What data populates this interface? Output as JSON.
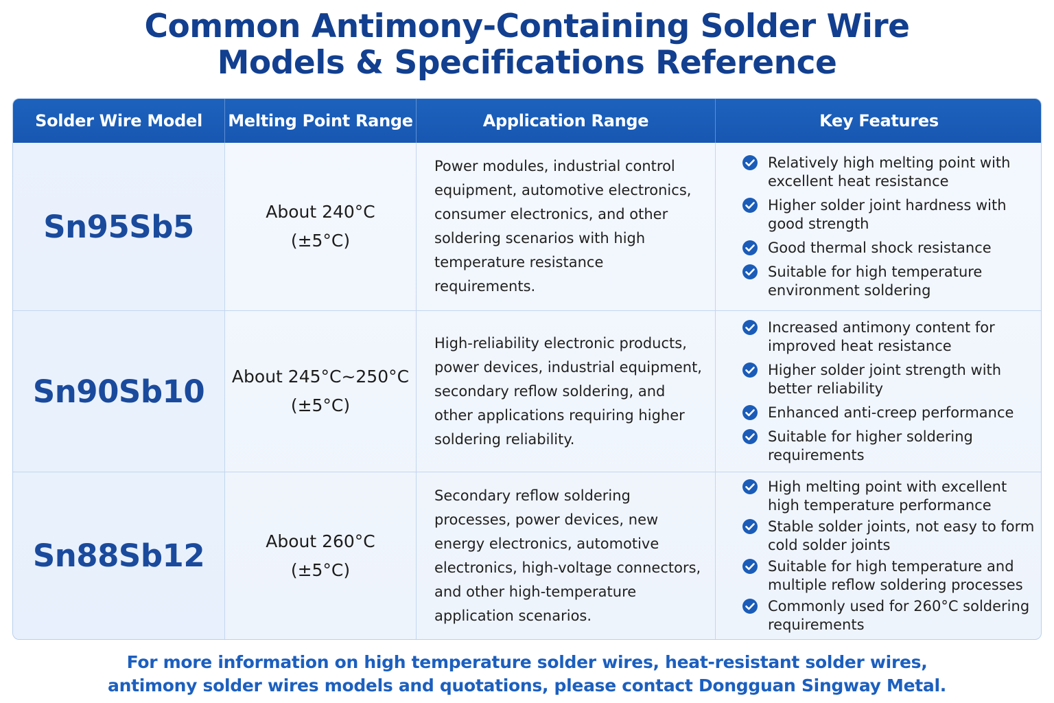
{
  "title": {
    "line1": "Common Antimony-Containing Solder Wire",
    "line2": "Models & Specifications Reference"
  },
  "columns": [
    "Solder Wire Model",
    "Melting Point Range",
    "Application Range",
    "Key Features"
  ],
  "rows": [
    {
      "model": "Sn95Sb5",
      "melting": "About 240°C",
      "tolerance": "(±5°C)",
      "application": "Power modules, industrial control equipment, automotive electronics, consumer electronics, and other soldering scenarios with high temperature resistance requirements.",
      "features": [
        "Relatively high melting point with excellent heat resistance",
        "Higher solder joint hardness with good strength",
        "Good thermal shock resistance",
        "Suitable for high temperature environment soldering"
      ]
    },
    {
      "model": "Sn90Sb10",
      "melting": "About 245°C~250°C",
      "tolerance": "(±5°C)",
      "application": "High-reliability electronic products, power devices, industrial equipment, secondary reflow soldering, and other applications requiring higher soldering reliability.",
      "features": [
        "Increased antimony content for improved heat resistance",
        "Higher solder joint strength with better reliability",
        "Enhanced anti-creep performance",
        "Suitable for higher soldering requirements"
      ]
    },
    {
      "model": "Sn88Sb12",
      "melting": "About 260°C",
      "tolerance": "(±5°C)",
      "application": "Secondary reflow soldering processes, power devices, new energy electronics, automotive electronics, high-voltage connectors, and other high-temperature application scenarios.",
      "features": [
        "High melting point with excellent high temperature performance",
        "Stable solder joints, not easy to form cold solder joints",
        "Suitable for high temperature and multiple reflow soldering processes",
        "Commonly used for 260°C soldering requirements"
      ]
    }
  ],
  "footer": {
    "line1": "For more information on high temperature solder wires, heat-resistant solder wires,",
    "line2": "antimony solder wires models and quotations, please contact Dongguan Singway Metal."
  },
  "icons": {
    "feature_bullet": "check-circle-icon"
  },
  "colors": {
    "title": "#123f8f",
    "header_bg": "#1a5cb8",
    "model_text": "#1a4a9c",
    "check": "#1a5cb8",
    "footer": "#1c5fbf"
  }
}
